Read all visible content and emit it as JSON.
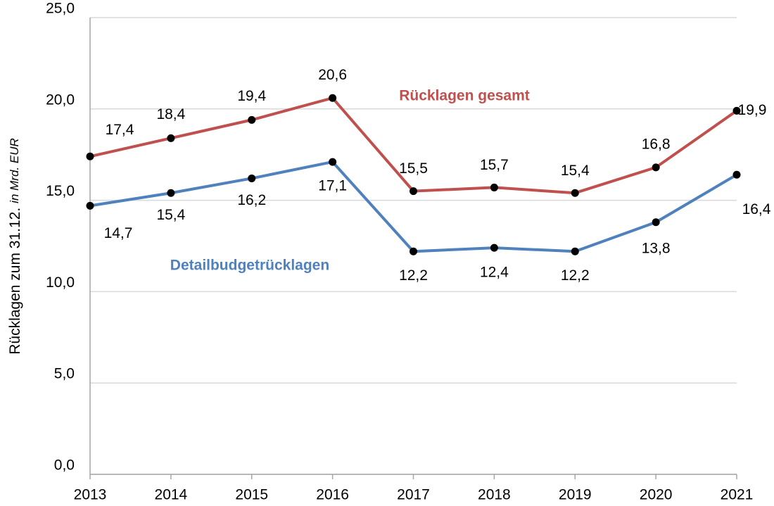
{
  "chart_data": {
    "type": "line",
    "ylabel": "Rücklagen zum 31.12.",
    "ylabel_unit": "in Mrd. EUR",
    "categories": [
      "2013",
      "2014",
      "2015",
      "2016",
      "2017",
      "2018",
      "2019",
      "2020",
      "2021"
    ],
    "series": [
      {
        "name": "Rücklagen gesamt",
        "color": "#c0504d",
        "values": [
          17.4,
          18.4,
          19.4,
          20.6,
          15.5,
          15.7,
          15.4,
          16.8,
          19.9
        ],
        "value_labels": [
          "17,4",
          "18,4",
          "19,4",
          "20,6",
          "15,5",
          "15,7",
          "15,4",
          "16,8",
          "19,9"
        ]
      },
      {
        "name": "Detailbudgetrücklagen",
        "color": "#4f81bd",
        "values": [
          14.7,
          15.4,
          16.2,
          17.1,
          12.2,
          12.4,
          12.2,
          13.8,
          16.4
        ],
        "value_labels": [
          "14,7",
          "15,4",
          "16,2",
          "17,1",
          "12,2",
          "12,4",
          "12,2",
          "13,8",
          "16,4"
        ]
      }
    ],
    "ylim": [
      0,
      25
    ],
    "yticks": [
      {
        "value": 0,
        "label": "0,0"
      },
      {
        "value": 5,
        "label": "5,0"
      },
      {
        "value": 10,
        "label": "10,0"
      },
      {
        "value": 15,
        "label": "15,0"
      },
      {
        "value": 20,
        "label": "20,0"
      },
      {
        "value": 25,
        "label": "25,0"
      }
    ],
    "grid": true
  }
}
